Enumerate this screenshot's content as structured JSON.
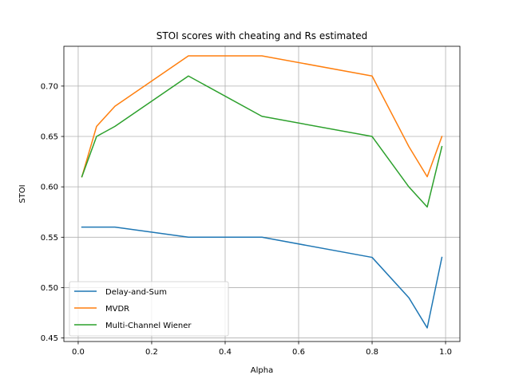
{
  "chart_data": {
    "type": "line",
    "title": "STOI scores with cheating and Rs estimated",
    "xlabel": "Alpha",
    "ylabel": "STOI",
    "xlim": [
      -0.039,
      1.039
    ],
    "ylim": [
      0.4465,
      0.7395
    ],
    "xticks": [
      0.0,
      0.2,
      0.4,
      0.6,
      0.8,
      1.0
    ],
    "xtick_labels": [
      "0.0",
      "0.2",
      "0.4",
      "0.6",
      "0.8",
      "1.0"
    ],
    "yticks": [
      0.45,
      0.5,
      0.55,
      0.6,
      0.65,
      0.7
    ],
    "ytick_labels": [
      "0.45",
      "0.50",
      "0.55",
      "0.60",
      "0.65",
      "0.70"
    ],
    "grid": true,
    "legend_position": "bottom-left",
    "x": [
      0.01,
      0.05,
      0.1,
      0.3,
      0.5,
      0.8,
      0.9,
      0.95,
      0.99
    ],
    "series": [
      {
        "name": "Delay-and-Sum",
        "color": "#1f77b4",
        "values": [
          0.56,
          0.56,
          0.56,
          0.55,
          0.55,
          0.53,
          0.49,
          0.46,
          0.53
        ]
      },
      {
        "name": "MVDR",
        "color": "#ff7f0e",
        "values": [
          0.61,
          0.66,
          0.68,
          0.73,
          0.73,
          0.71,
          0.64,
          0.61,
          0.65
        ]
      },
      {
        "name": "Multi-Channel Wiener",
        "color": "#2ca02c",
        "values": [
          0.61,
          0.65,
          0.66,
          0.71,
          0.67,
          0.65,
          0.6,
          0.58,
          0.64
        ]
      }
    ]
  }
}
